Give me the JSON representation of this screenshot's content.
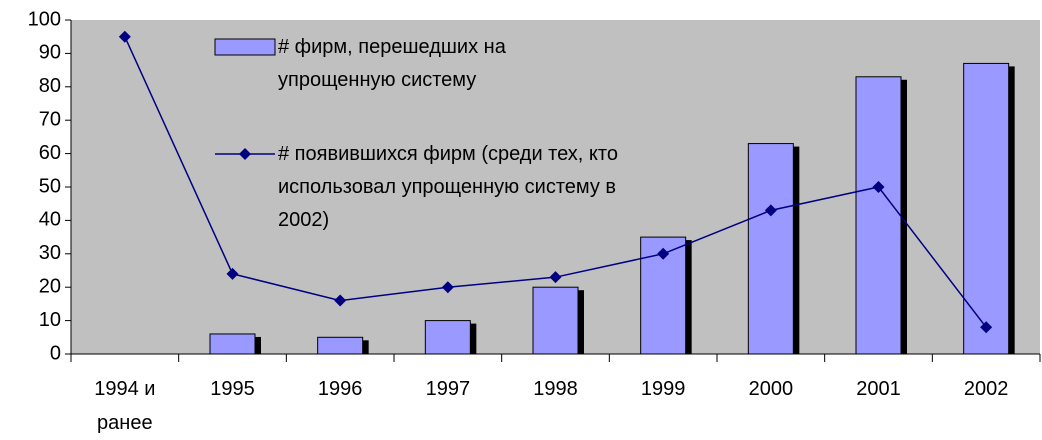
{
  "chart_data": {
    "type": "bar",
    "categories": [
      "1994 и ранее",
      "1995",
      "1996",
      "1997",
      "1998",
      "1999",
      "2000",
      "2001",
      "2002"
    ],
    "series": [
      {
        "name": "# фирм, перешедших на упрощенную систему",
        "type": "bar",
        "color": "#9999ff",
        "values": [
          null,
          6,
          5,
          10,
          20,
          35,
          63,
          83,
          87
        ]
      },
      {
        "name": "# появившихся фирм (среди тех, кто использовал упрощенную систему в 2002)",
        "type": "line",
        "color": "#000080",
        "values": [
          95,
          24,
          16,
          20,
          23,
          30,
          43,
          50,
          8
        ]
      }
    ],
    "ylim": [
      0,
      100
    ],
    "yticks": [
      0,
      10,
      20,
      30,
      40,
      50,
      60,
      70,
      80,
      90,
      100
    ],
    "background": "#c0c0c0"
  }
}
